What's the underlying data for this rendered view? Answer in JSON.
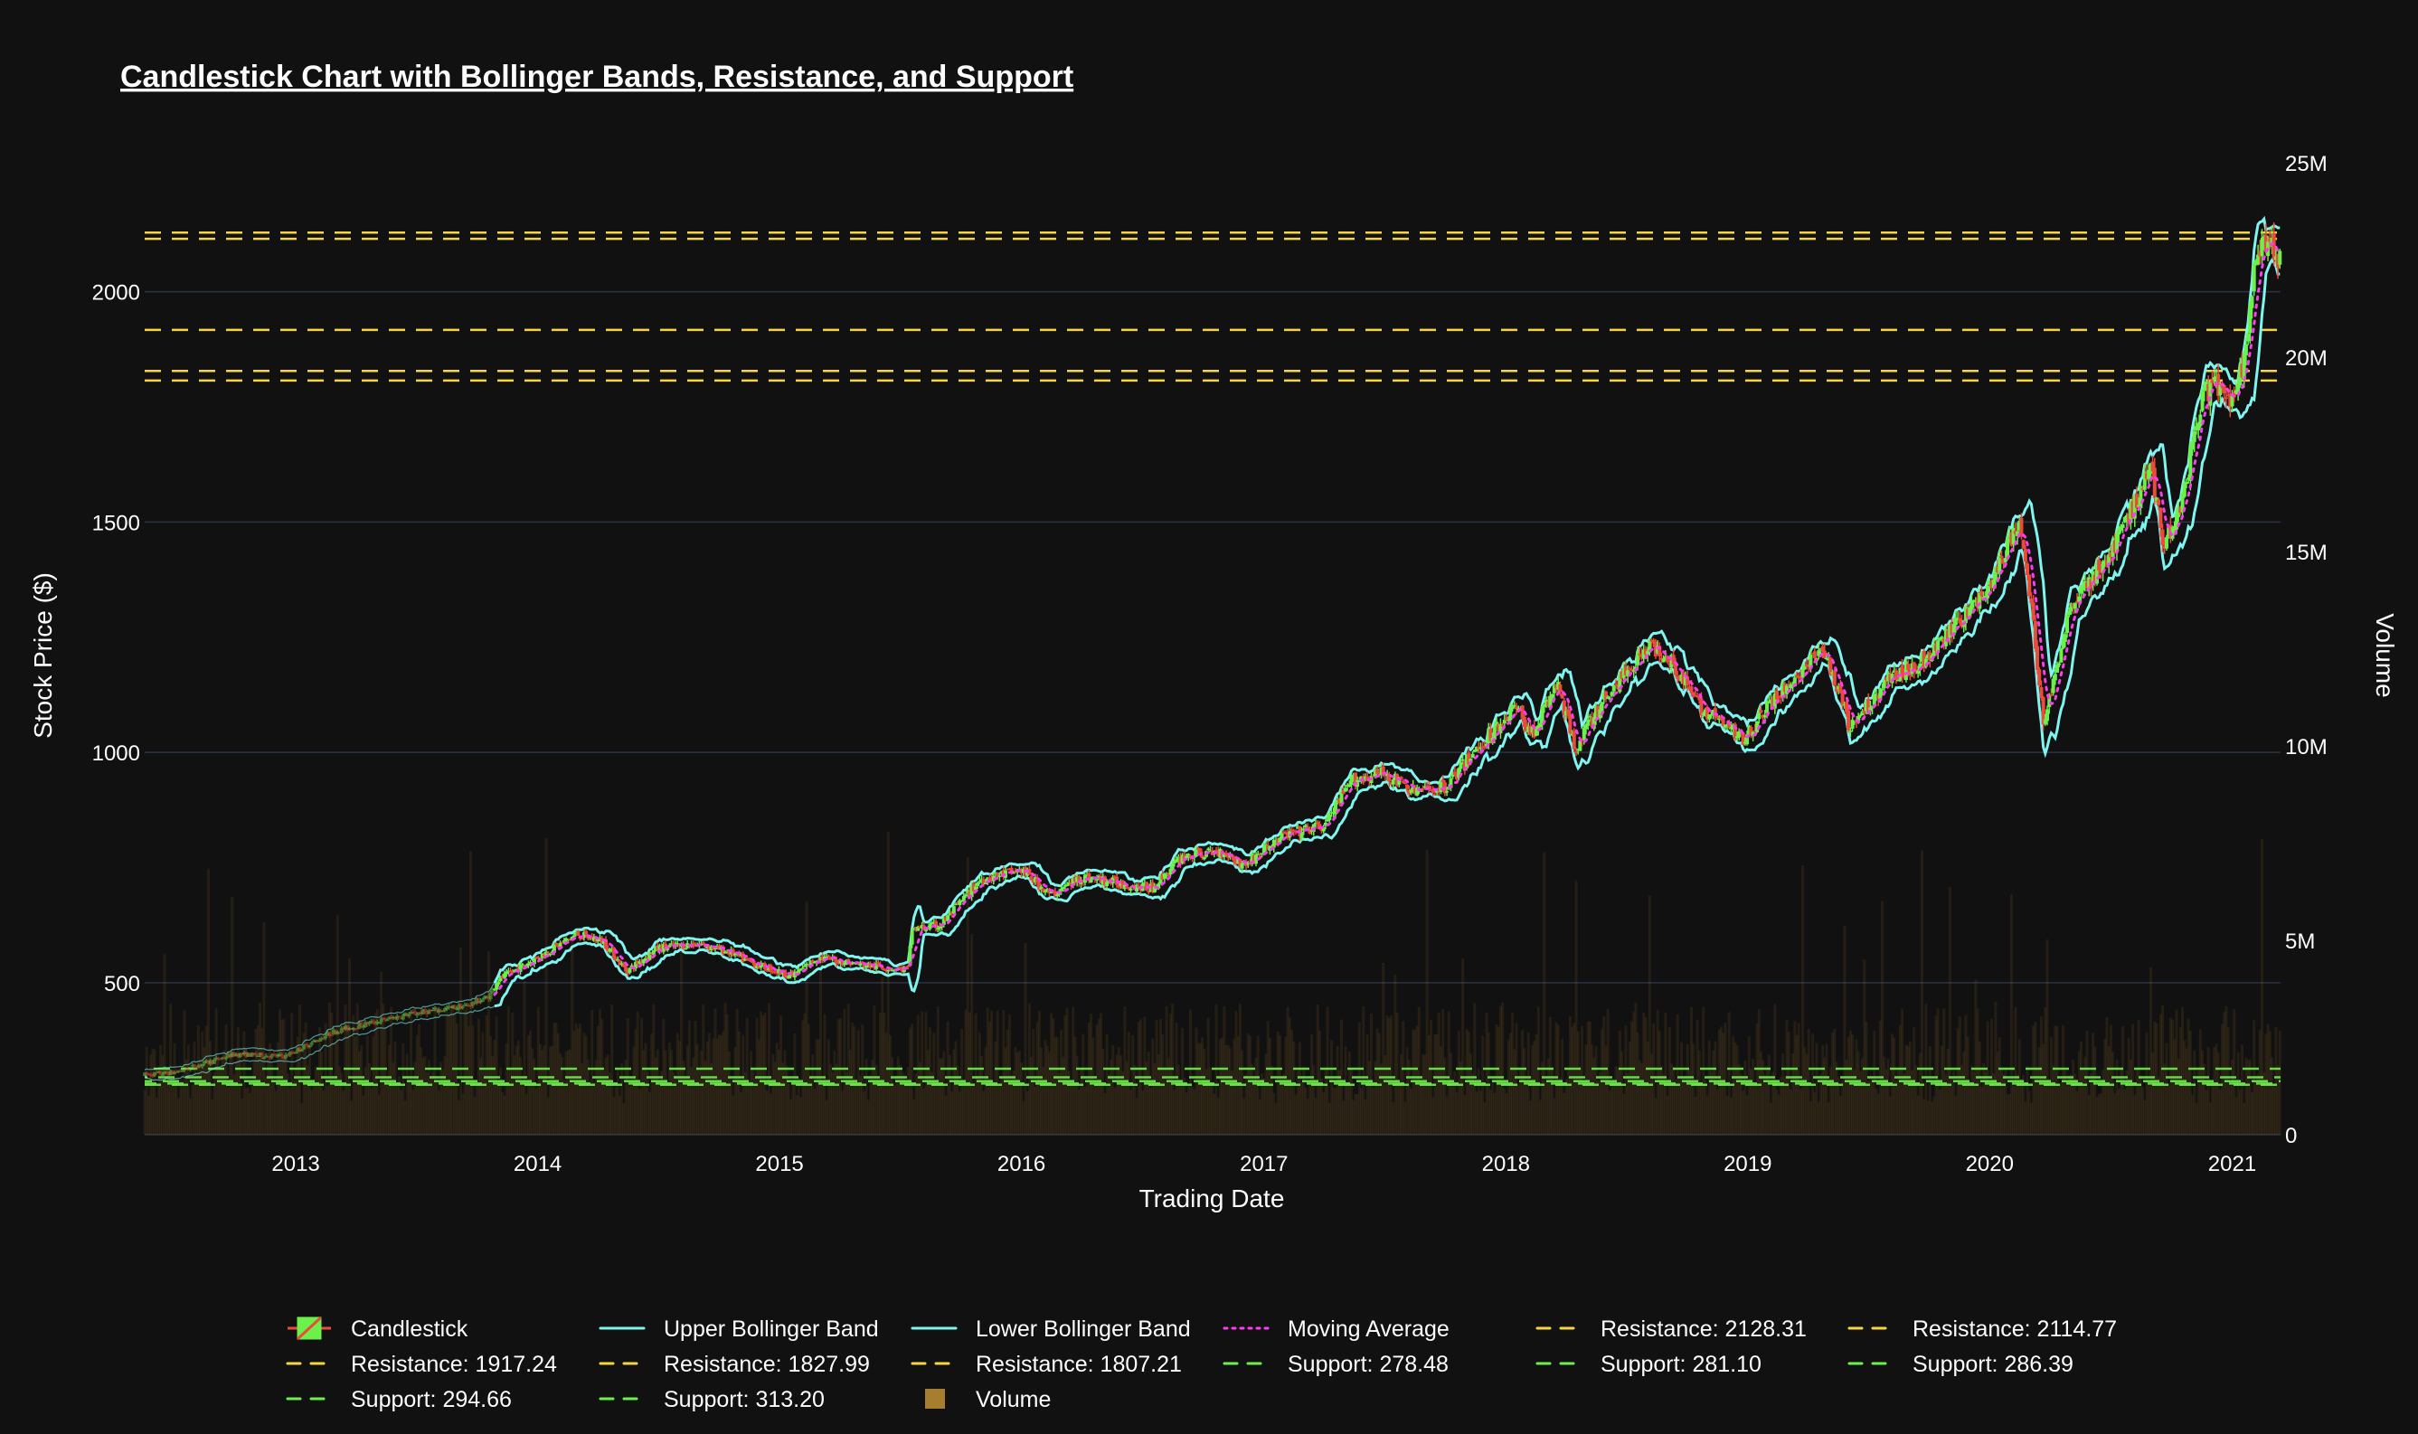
{
  "chart_data": {
    "type": "candlestick",
    "title": "Candlestick Chart with Bollinger Bands, Resistance, and Support",
    "xlabel": "Trading Date",
    "ylabel": "Stock Price ($)",
    "y2label": "Volume",
    "xrange": [
      "2012-05-18",
      "2021-03-15"
    ],
    "ylim": [
      170,
      2280
    ],
    "y2lim": [
      0,
      25000000
    ],
    "yticks": [
      500,
      1000,
      1500,
      2000
    ],
    "ytick_labels": [
      "500",
      "1000",
      "1500",
      "2000"
    ],
    "y2ticks": [
      0,
      5000000,
      10000000,
      15000000,
      20000000,
      25000000
    ],
    "y2tick_labels": [
      "0",
      "5M",
      "10M",
      "15M",
      "20M",
      "25M"
    ],
    "xticks": [
      "2013-01-01",
      "2014-01-01",
      "2015-01-01",
      "2016-01-01",
      "2017-01-01",
      "2018-01-01",
      "2019-01-01",
      "2020-01-01",
      "2021-01-01"
    ],
    "xtick_labels": [
      "2013",
      "2014",
      "2015",
      "2016",
      "2017",
      "2018",
      "2019",
      "2020",
      "2021"
    ],
    "grid": true,
    "legend_position": "bottom",
    "price_keypoints": [
      [
        "2012-05-18",
        300
      ],
      [
        "2012-07-01",
        305
      ],
      [
        "2012-10-01",
        345
      ],
      [
        "2012-12-15",
        340
      ],
      [
        "2013-03-01",
        395
      ],
      [
        "2013-06-15",
        430
      ],
      [
        "2013-09-15",
        450
      ],
      [
        "2013-10-20",
        470
      ],
      [
        "2013-11-01",
        505
      ],
      [
        "2014-01-01",
        555
      ],
      [
        "2014-03-01",
        605
      ],
      [
        "2014-04-10",
        590
      ],
      [
        "2014-05-15",
        525
      ],
      [
        "2014-07-01",
        575
      ],
      [
        "2014-09-01",
        585
      ],
      [
        "2014-10-20",
        565
      ],
      [
        "2014-11-15",
        545
      ],
      [
        "2015-01-20",
        515
      ],
      [
        "2015-03-01",
        555
      ],
      [
        "2015-05-01",
        540
      ],
      [
        "2015-07-01",
        530
      ],
      [
        "2015-07-16",
        530
      ],
      [
        "2015-07-18",
        615
      ],
      [
        "2015-09-01",
        625
      ],
      [
        "2015-11-01",
        725
      ],
      [
        "2016-01-01",
        745
      ],
      [
        "2016-02-15",
        690
      ],
      [
        "2016-04-01",
        730
      ],
      [
        "2016-06-01",
        715
      ],
      [
        "2016-07-15",
        705
      ],
      [
        "2016-09-01",
        775
      ],
      [
        "2016-11-01",
        785
      ],
      [
        "2016-12-01",
        755
      ],
      [
        "2017-02-01",
        820
      ],
      [
        "2017-04-01",
        840
      ],
      [
        "2017-05-15",
        940
      ],
      [
        "2017-07-01",
        955
      ],
      [
        "2017-08-15",
        915
      ],
      [
        "2017-10-01",
        925
      ],
      [
        "2017-11-20",
        1010
      ],
      [
        "2018-01-15",
        1100
      ],
      [
        "2018-02-10",
        1040
      ],
      [
        "2018-03-20",
        1150
      ],
      [
        "2018-04-15",
        1010
      ],
      [
        "2018-06-01",
        1120
      ],
      [
        "2018-08-01",
        1230
      ],
      [
        "2018-09-01",
        1215
      ],
      [
        "2018-10-20",
        1100
      ],
      [
        "2018-12-24",
        1030
      ],
      [
        "2019-02-01",
        1100
      ],
      [
        "2019-04-25",
        1225
      ],
      [
        "2019-06-05",
        1050
      ],
      [
        "2019-08-01",
        1160
      ],
      [
        "2019-10-01",
        1205
      ],
      [
        "2019-12-01",
        1310
      ],
      [
        "2020-01-01",
        1360
      ],
      [
        "2020-02-15",
        1505
      ],
      [
        "2020-03-10",
        1240
      ],
      [
        "2020-03-23",
        1055
      ],
      [
        "2020-05-01",
        1320
      ],
      [
        "2020-07-01",
        1425
      ],
      [
        "2020-09-01",
        1620
      ],
      [
        "2020-09-20",
        1450
      ],
      [
        "2020-10-20",
        1560
      ],
      [
        "2020-11-15",
        1765
      ],
      [
        "2020-12-01",
        1800
      ],
      [
        "2021-01-05",
        1760
      ],
      [
        "2021-01-25",
        1900
      ],
      [
        "2021-02-05",
        2060
      ],
      [
        "2021-02-20",
        2110
      ],
      [
        "2021-03-12",
        2060
      ]
    ],
    "resistance_levels": [
      2128.31,
      2114.77,
      1917.24,
      1827.99,
      1807.21
    ],
    "support_levels": [
      278.48,
      281.1,
      286.39,
      294.66,
      313.2
    ],
    "legend": [
      {
        "label": "Candlestick",
        "kind": "candle"
      },
      {
        "label": "Upper Bollinger Band",
        "kind": "line",
        "color": "#7ff5f0",
        "dash": "solid"
      },
      {
        "label": "Lower Bollinger Band",
        "kind": "line",
        "color": "#7ff5f0",
        "dash": "solid"
      },
      {
        "label": "Moving Average",
        "kind": "line",
        "color": "#ff3cf0",
        "dash": "dot"
      },
      {
        "label": "Resistance: 2128.31",
        "kind": "line",
        "color": "#f5d642",
        "dash": "dash"
      },
      {
        "label": "Resistance: 2114.77",
        "kind": "line",
        "color": "#f5d642",
        "dash": "dash"
      },
      {
        "label": "Resistance: 1917.24",
        "kind": "line",
        "color": "#f5d642",
        "dash": "dash"
      },
      {
        "label": "Resistance: 1827.99",
        "kind": "line",
        "color": "#f5d642",
        "dash": "dash"
      },
      {
        "label": "Resistance: 1807.21",
        "kind": "line",
        "color": "#f5d642",
        "dash": "dash"
      },
      {
        "label": "Support: 278.48",
        "kind": "line",
        "color": "#6cf04a",
        "dash": "dash"
      },
      {
        "label": "Support: 281.10",
        "kind": "line",
        "color": "#6cf04a",
        "dash": "dash"
      },
      {
        "label": "Support: 286.39",
        "kind": "line",
        "color": "#6cf04a",
        "dash": "dash"
      },
      {
        "label": "Support: 294.66",
        "kind": "line",
        "color": "#6cf04a",
        "dash": "dash"
      },
      {
        "label": "Support: 313.20",
        "kind": "line",
        "color": "#6cf04a",
        "dash": "dash"
      },
      {
        "label": "Volume",
        "kind": "box",
        "color": "#a77d2f"
      }
    ]
  },
  "colors": {
    "background": "#111111",
    "grid": "#2d3346",
    "bollinger": "#7ff5f0",
    "moving_average": "#ff3cf0",
    "resistance": "#f5d642",
    "support": "#6cf04a",
    "candle_up": "#6cf04a",
    "candle_down": "#ee4a3a",
    "volume": "#a77d2f"
  }
}
